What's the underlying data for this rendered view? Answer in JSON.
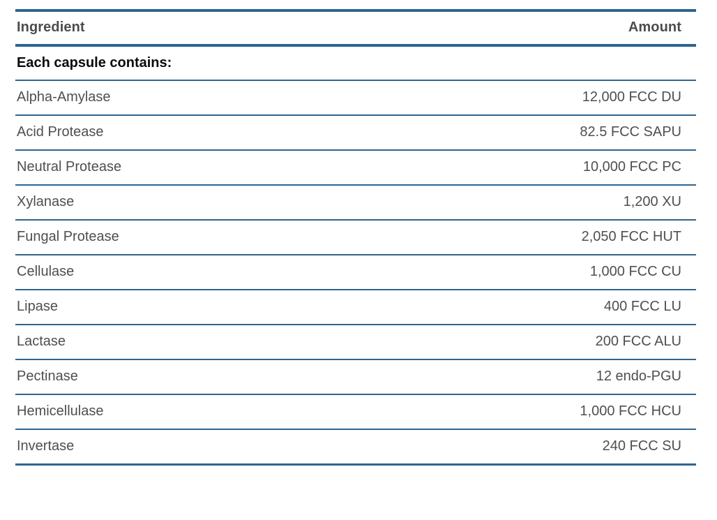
{
  "table": {
    "columns": [
      {
        "label": "Ingredient"
      },
      {
        "label": "Amount"
      }
    ],
    "section_header": "Each capsule contains:",
    "rows": [
      {
        "ingredient": "Alpha-Amylase",
        "amount": "12,000 FCC DU"
      },
      {
        "ingredient": "Acid Protease",
        "amount": "82.5 FCC SAPU"
      },
      {
        "ingredient": "Neutral Protease",
        "amount": "10,000 FCC PC"
      },
      {
        "ingredient": "Xylanase",
        "amount": "1,200 XU"
      },
      {
        "ingredient": "Fungal Protease",
        "amount": "2,050 FCC HUT"
      },
      {
        "ingredient": "Cellulase",
        "amount": "1,000 FCC CU"
      },
      {
        "ingredient": "Lipase",
        "amount": "400 FCC LU"
      },
      {
        "ingredient": "Lactase",
        "amount": "200 FCC ALU"
      },
      {
        "ingredient": "Pectinase",
        "amount": "12 endo-PGU"
      },
      {
        "ingredient": "Hemicellulase",
        "amount": "1,000 FCC HCU"
      },
      {
        "ingredient": "Invertase",
        "amount": "240 FCC SU"
      }
    ],
    "colors": {
      "border_blue": "#2e6591",
      "header_text": "#4c4c4c",
      "row_text": "#4f4f4f",
      "section_text": "#0a0a0a",
      "background": "#ffffff"
    }
  }
}
